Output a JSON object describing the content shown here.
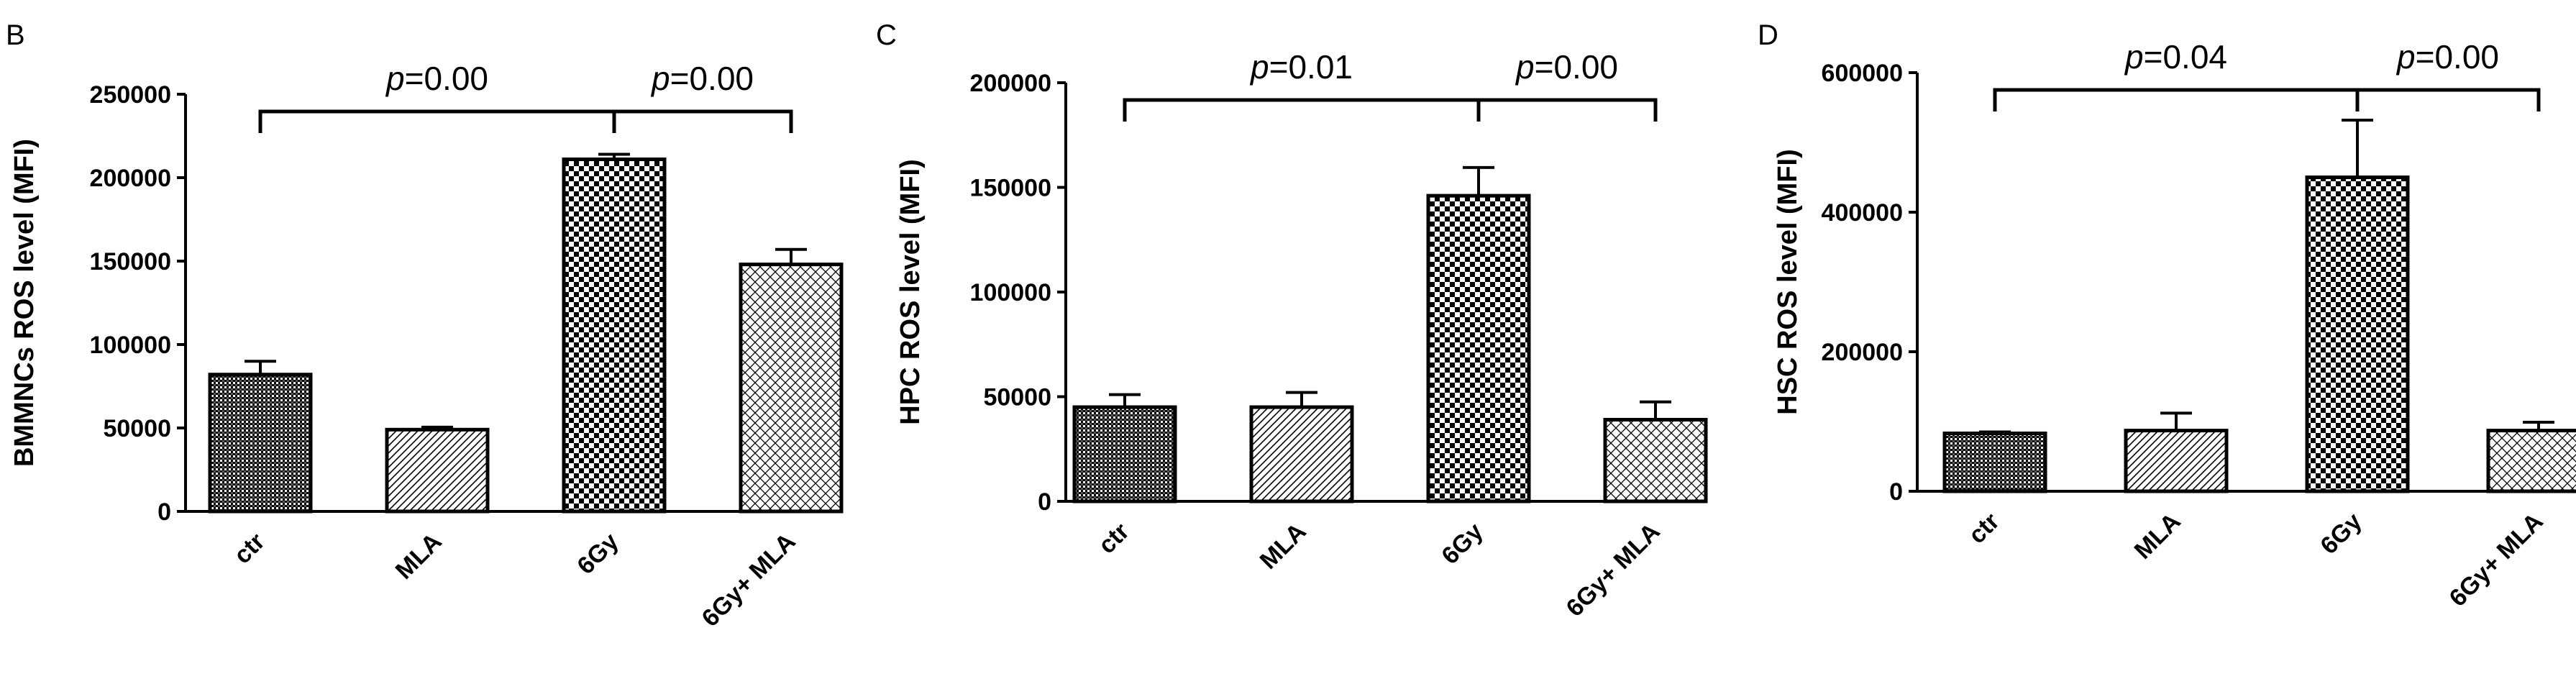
{
  "chart_data": [
    {
      "panel": "B",
      "type": "bar",
      "ylabel": "BMMNCs ROS level (MFI)",
      "categories": [
        "ctr",
        "MLA",
        "6Gy",
        "6Gy+ MLA"
      ],
      "values": [
        82000,
        49000,
        211000,
        148000
      ],
      "errors": [
        8000,
        1500,
        3000,
        9000
      ],
      "ylim": [
        0,
        250000
      ],
      "yticks": [
        0,
        50000,
        100000,
        150000,
        200000,
        250000
      ],
      "ytick_labels": [
        "0",
        "50000",
        "100000",
        "150000",
        "200000",
        "250000"
      ],
      "patterns": [
        "crosshatch-fine",
        "diagonal",
        "checker",
        "diagonal-dense"
      ],
      "comparisons": [
        {
          "from": 0,
          "to": 2,
          "p_prefix": "p",
          "p_value": "=0.00"
        },
        {
          "from": 2,
          "to": 3,
          "p_prefix": "p",
          "p_value": "=0.00"
        }
      ],
      "grid": false
    },
    {
      "panel": "C",
      "type": "bar",
      "ylabel": "HPC ROS level (MFI)",
      "categories": [
        "ctr",
        "MLA",
        "6Gy",
        "6Gy+ MLA"
      ],
      "values": [
        45000,
        45000,
        146000,
        39000
      ],
      "errors": [
        6000,
        7000,
        13500,
        8500
      ],
      "ylim": [
        0,
        200000
      ],
      "yticks": [
        0,
        50000,
        100000,
        150000,
        200000
      ],
      "ytick_labels": [
        "0",
        "50000",
        "100000",
        "150000",
        "200000"
      ],
      "patterns": [
        "crosshatch-fine",
        "diagonal",
        "checker",
        "diagonal-dense"
      ],
      "comparisons": [
        {
          "from": 0,
          "to": 2,
          "p_prefix": "p",
          "p_value": "=0.01"
        },
        {
          "from": 2,
          "to": 3,
          "p_prefix": "p",
          "p_value": "=0.00"
        }
      ],
      "grid": false
    },
    {
      "panel": "D",
      "type": "bar",
      "ylabel": "HSC ROS level (MFI)",
      "categories": [
        "ctr",
        "MLA",
        "6Gy",
        "6Gy+ MLA"
      ],
      "values": [
        83000,
        87000,
        450000,
        87000
      ],
      "errors": [
        2000,
        25000,
        82000,
        12000
      ],
      "ylim": [
        0,
        600000
      ],
      "yticks": [
        0,
        200000,
        400000,
        600000
      ],
      "ytick_labels": [
        "0",
        "200000",
        "400000",
        "600000"
      ],
      "patterns": [
        "crosshatch-fine",
        "diagonal",
        "checker",
        "diagonal-dense"
      ],
      "comparisons": [
        {
          "from": 0,
          "to": 2,
          "p_prefix": "p",
          "p_value": "=0.04"
        },
        {
          "from": 2,
          "to": 3,
          "p_prefix": "p",
          "p_value": "=0.00"
        }
      ],
      "grid": false
    }
  ]
}
